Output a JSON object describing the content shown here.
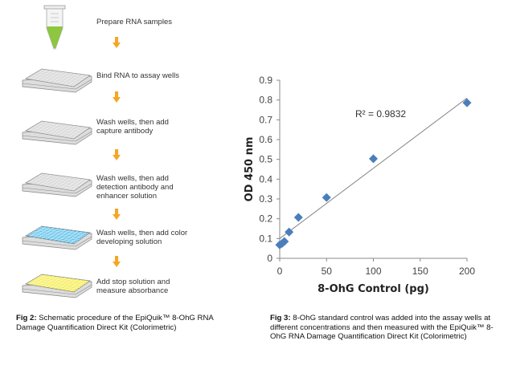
{
  "figure2": {
    "steps": [
      {
        "icon": "tube-green-icon",
        "lines": [
          "Prepare RNA samples"
        ]
      },
      {
        "icon": "plate-blank-icon",
        "lines": [
          "Bind RNA to assay wells"
        ]
      },
      {
        "icon": "plate-blank-icon",
        "lines": [
          "Wash wells, then add",
          "capture antibody"
        ]
      },
      {
        "icon": "plate-blank-icon",
        "lines": [
          "Wash wells, then add",
          "detection antibody and",
          "enhancer solution"
        ]
      },
      {
        "icon": "plate-blue-icon",
        "lines": [
          "Wash wells, then add color",
          "developing solution"
        ]
      },
      {
        "icon": "plate-yellow-icon",
        "lines": [
          "Add stop solution and",
          "measure absorbance"
        ]
      }
    ],
    "arrow_color": "#f5a623",
    "caption_label": "Fig 2:",
    "caption_text": " Schematic procedure of the EpiQuik™ 8-OhG RNA Damage Quantification Direct Kit (Colorimetric)"
  },
  "figure3": {
    "caption_label": "Fig 3:",
    "caption_text": " 8-OhG standard control was added into the assay wells at different concentrations and then measured with the EpiQuik™ 8-OhG RNA Damage Quantification Direct Kit (Colorimetric)"
  },
  "chart_data": {
    "type": "scatter",
    "xlabel": "8-OhG Control (pg)",
    "ylabel": "OD 450 nm",
    "xlim": [
      0,
      200
    ],
    "ylim": [
      0,
      0.9
    ],
    "xticks": [
      "0",
      "50",
      "100",
      "150",
      "200"
    ],
    "yticks": [
      "0",
      "0.1",
      "0.2",
      "0.3",
      "0.4",
      "0.5",
      "0.6",
      "0.7",
      "0.8",
      "0.9"
    ],
    "grid": false,
    "marker_color": "#4a7ebb",
    "points": [
      [
        0,
        0.068
      ],
      [
        2.5,
        0.075
      ],
      [
        5,
        0.085
      ],
      [
        10,
        0.133
      ],
      [
        20,
        0.207
      ],
      [
        50,
        0.307
      ],
      [
        100,
        0.503
      ],
      [
        200,
        0.786
      ]
    ],
    "trendline": {
      "type": "linear",
      "label": "R² = 0.9832",
      "start": [
        0,
        0.1
      ],
      "end": [
        200,
        0.81
      ]
    }
  }
}
